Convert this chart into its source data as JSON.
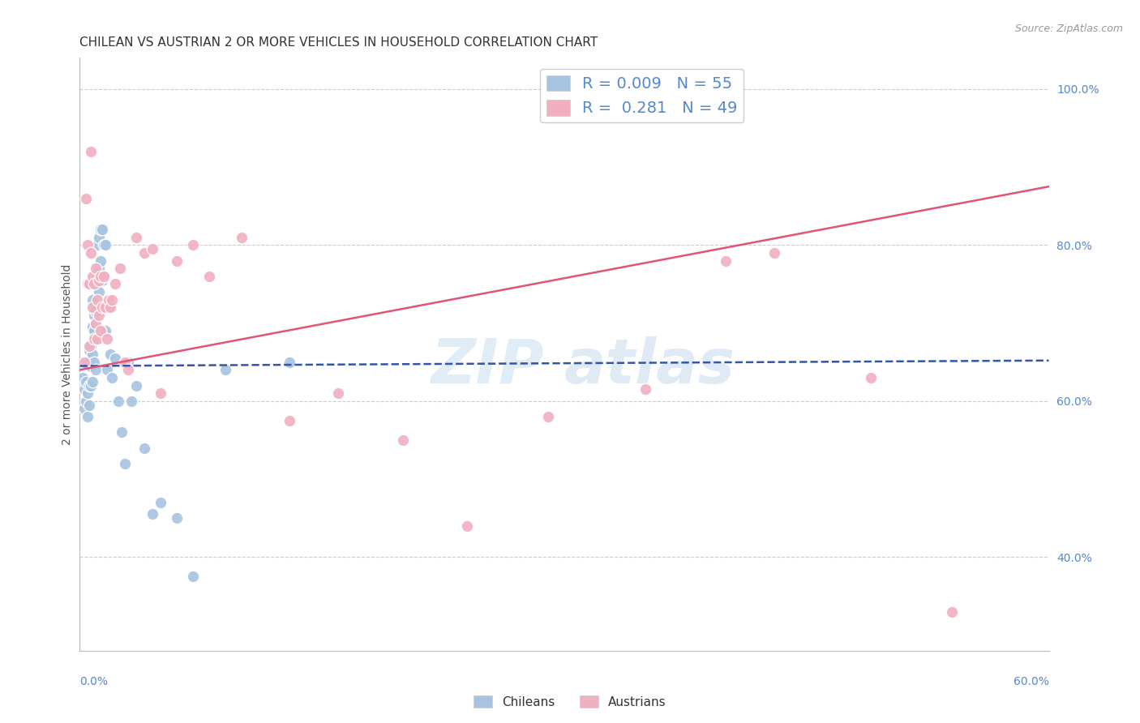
{
  "title": "CHILEAN VS AUSTRIAN 2 OR MORE VEHICLES IN HOUSEHOLD CORRELATION CHART",
  "source": "Source: ZipAtlas.com",
  "ylabel": "2 or more Vehicles in Household",
  "xlim": [
    0.0,
    0.6
  ],
  "ylim": [
    0.28,
    1.04
  ],
  "right_yticks": [
    0.4,
    0.6,
    0.8,
    1.0
  ],
  "right_yticklabels": [
    "40.0%",
    "60.0%",
    "80.0%",
    "100.0%"
  ],
  "background_color": "#ffffff",
  "grid_color": "#cccccc",
  "blue_color": "#a8c4e0",
  "pink_color": "#f0b0c0",
  "blue_line_color": "#3355aa",
  "pink_line_color": "#e05575",
  "R_blue": 0.009,
  "N_blue": 55,
  "R_pink": 0.281,
  "N_pink": 49,
  "blue_line_y0": 0.645,
  "blue_line_y1": 0.652,
  "pink_line_y0": 0.64,
  "pink_line_y1": 0.875,
  "blue_points_x": [
    0.002,
    0.003,
    0.003,
    0.004,
    0.004,
    0.005,
    0.005,
    0.005,
    0.006,
    0.006,
    0.006,
    0.007,
    0.007,
    0.007,
    0.008,
    0.008,
    0.008,
    0.008,
    0.009,
    0.009,
    0.009,
    0.01,
    0.01,
    0.01,
    0.011,
    0.011,
    0.012,
    0.012,
    0.012,
    0.013,
    0.013,
    0.014,
    0.014,
    0.015,
    0.015,
    0.016,
    0.016,
    0.017,
    0.018,
    0.019,
    0.02,
    0.022,
    0.024,
    0.026,
    0.028,
    0.03,
    0.032,
    0.035,
    0.04,
    0.045,
    0.05,
    0.06,
    0.07,
    0.09,
    0.13
  ],
  "blue_points_y": [
    0.63,
    0.59,
    0.615,
    0.6,
    0.625,
    0.61,
    0.58,
    0.65,
    0.62,
    0.665,
    0.595,
    0.645,
    0.67,
    0.62,
    0.66,
    0.695,
    0.73,
    0.625,
    0.65,
    0.69,
    0.71,
    0.64,
    0.68,
    0.715,
    0.76,
    0.8,
    0.77,
    0.81,
    0.74,
    0.78,
    0.82,
    0.82,
    0.755,
    0.8,
    0.76,
    0.69,
    0.8,
    0.64,
    0.72,
    0.66,
    0.63,
    0.655,
    0.6,
    0.56,
    0.52,
    0.65,
    0.6,
    0.62,
    0.54,
    0.455,
    0.47,
    0.45,
    0.375,
    0.64,
    0.65
  ],
  "pink_points_x": [
    0.003,
    0.004,
    0.005,
    0.005,
    0.006,
    0.006,
    0.007,
    0.007,
    0.008,
    0.008,
    0.009,
    0.009,
    0.01,
    0.01,
    0.011,
    0.011,
    0.012,
    0.012,
    0.013,
    0.013,
    0.014,
    0.015,
    0.016,
    0.017,
    0.018,
    0.019,
    0.02,
    0.022,
    0.025,
    0.028,
    0.03,
    0.035,
    0.04,
    0.045,
    0.05,
    0.06,
    0.07,
    0.08,
    0.1,
    0.13,
    0.16,
    0.2,
    0.24,
    0.29,
    0.35,
    0.4,
    0.43,
    0.49,
    0.54
  ],
  "pink_points_y": [
    0.65,
    0.86,
    0.75,
    0.8,
    0.67,
    0.75,
    0.79,
    0.92,
    0.72,
    0.76,
    0.68,
    0.75,
    0.7,
    0.77,
    0.68,
    0.73,
    0.71,
    0.755,
    0.69,
    0.76,
    0.72,
    0.76,
    0.72,
    0.68,
    0.73,
    0.72,
    0.73,
    0.75,
    0.77,
    0.65,
    0.64,
    0.81,
    0.79,
    0.795,
    0.61,
    0.78,
    0.8,
    0.76,
    0.81,
    0.575,
    0.61,
    0.55,
    0.44,
    0.58,
    0.615,
    0.78,
    0.79,
    0.63,
    0.33
  ],
  "watermark_line1": "ZIP",
  "watermark_line2": "atlas"
}
